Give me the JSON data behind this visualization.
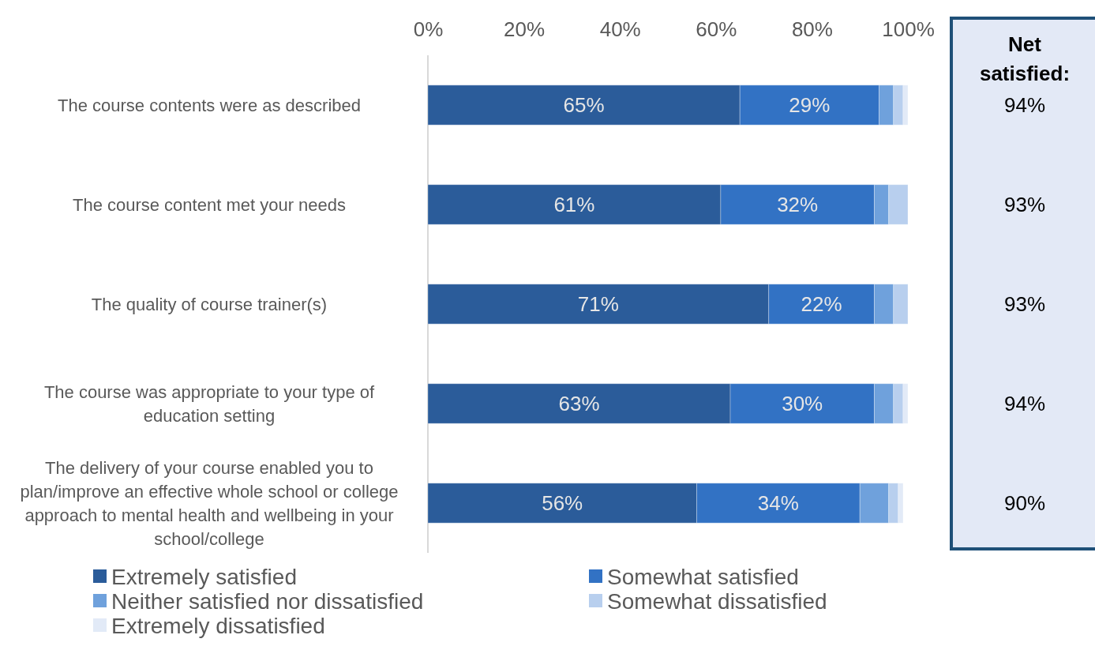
{
  "chart_data": {
    "type": "bar",
    "orientation": "horizontal",
    "stacked": true,
    "categories": [
      "The course contents were as described",
      "The course content met your needs",
      "The quality of course trainer(s)",
      "The course was appropriate to your type of education setting",
      "The delivery of your course enabled you to plan/improve an effective whole school or college approach to mental health and wellbeing in your school/college"
    ],
    "series": [
      {
        "name": "Extremely satisfied",
        "color": "#2b5c9a",
        "values": [
          65,
          61,
          71,
          63,
          56
        ],
        "value_labels": [
          "65%",
          "61%",
          "71%",
          "63%",
          "56%"
        ]
      },
      {
        "name": "Somewhat satisfied",
        "color": "#3272c4",
        "values": [
          29,
          32,
          22,
          30,
          34
        ],
        "value_labels": [
          "29%",
          "32%",
          "22%",
          "30%",
          "34%"
        ]
      },
      {
        "name": "Neither satisfied nor dissatisfied",
        "color": "#6fa1dc",
        "values": [
          3,
          3,
          4,
          4,
          6
        ]
      },
      {
        "name": "Somewhat dissatisfied",
        "color": "#b8cfee",
        "values": [
          2,
          4,
          3,
          2,
          2
        ]
      },
      {
        "name": "Extremely dissatisfied",
        "color": "#e2eaf7",
        "values": [
          1,
          0,
          0,
          1,
          1
        ]
      }
    ],
    "xlim": [
      0,
      100
    ],
    "xticks": [
      {
        "value": 0,
        "label": "0%"
      },
      {
        "value": 20,
        "label": "20%"
      },
      {
        "value": 40,
        "label": "40%"
      },
      {
        "value": 60,
        "label": "60%"
      },
      {
        "value": 80,
        "label": "80%"
      },
      {
        "value": 100,
        "label": "100%"
      }
    ],
    "legend": "bottom",
    "annotations": [
      "Net satisfied:",
      "94%",
      "93%",
      "93%",
      "94%",
      "90%"
    ]
  }
}
